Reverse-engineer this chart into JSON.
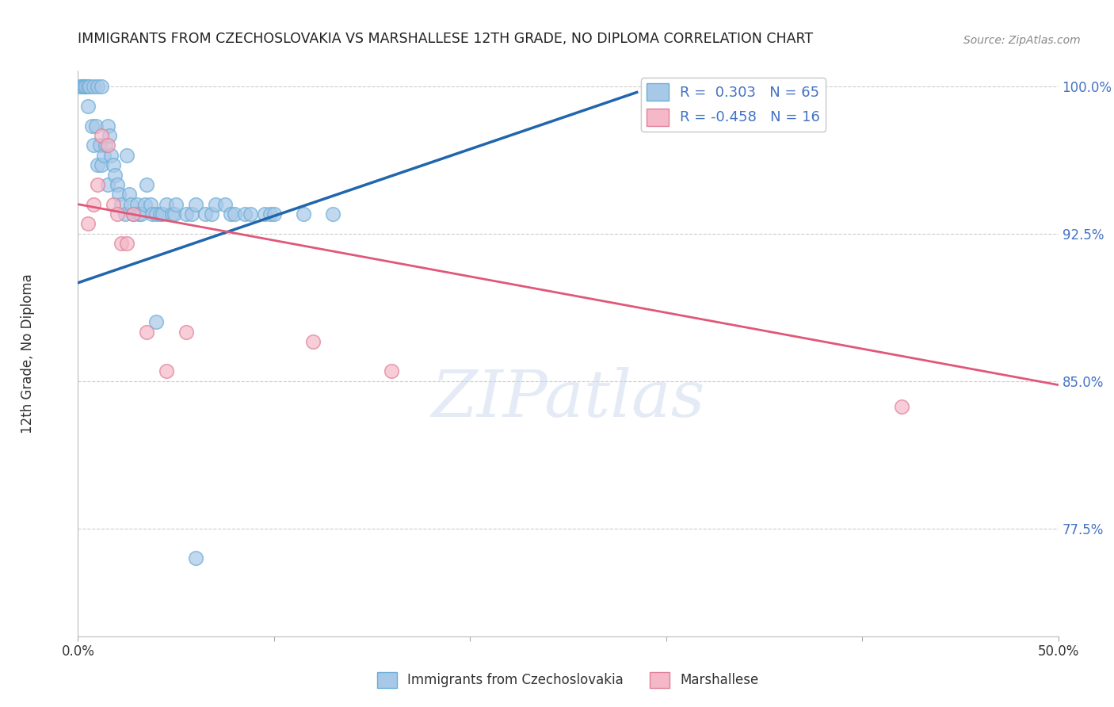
{
  "title": "IMMIGRANTS FROM CZECHOSLOVAKIA VS MARSHALLESE 12TH GRADE, NO DIPLOMA CORRELATION CHART",
  "source": "Source: ZipAtlas.com",
  "ylabel": "12th Grade, No Diploma",
  "xlim": [
    0.0,
    0.5
  ],
  "ylim": [
    0.72,
    1.008
  ],
  "xticks": [
    0.0,
    0.1,
    0.2,
    0.3,
    0.4,
    0.5
  ],
  "xticklabels": [
    "0.0%",
    "",
    "",
    "",
    "",
    "50.0%"
  ],
  "yticks": [
    0.775,
    0.85,
    0.925,
    1.0
  ],
  "yticklabels": [
    "77.5%",
    "85.0%",
    "92.5%",
    "100.0%"
  ],
  "legend1_label": "Immigrants from Czechoslovakia",
  "legend2_label": "Marshallese",
  "r1": 0.303,
  "n1": 65,
  "r2": -0.458,
  "n2": 16,
  "blue_color": "#a8c8e8",
  "blue_edge_color": "#6baed6",
  "pink_color": "#f4b8c8",
  "pink_edge_color": "#e08098",
  "blue_line_color": "#2166ac",
  "pink_line_color": "#e05878",
  "blue_scatter_x": [
    0.001,
    0.002,
    0.003,
    0.003,
    0.004,
    0.005,
    0.005,
    0.006,
    0.007,
    0.008,
    0.008,
    0.009,
    0.01,
    0.01,
    0.011,
    0.012,
    0.012,
    0.013,
    0.014,
    0.015,
    0.015,
    0.016,
    0.017,
    0.018,
    0.019,
    0.02,
    0.021,
    0.022,
    0.024,
    0.025,
    0.026,
    0.027,
    0.028,
    0.03,
    0.031,
    0.032,
    0.034,
    0.035,
    0.037,
    0.038,
    0.04,
    0.042,
    0.043,
    0.045,
    0.048,
    0.049,
    0.05,
    0.055,
    0.058,
    0.06,
    0.065,
    0.068,
    0.07,
    0.075,
    0.078,
    0.08,
    0.085,
    0.088,
    0.095,
    0.098,
    0.1,
    0.115,
    0.13,
    0.04,
    0.06
  ],
  "blue_scatter_y": [
    1.0,
    1.0,
    1.0,
    1.0,
    1.0,
    1.0,
    0.99,
    1.0,
    0.98,
    1.0,
    0.97,
    0.98,
    1.0,
    0.96,
    0.97,
    1.0,
    0.96,
    0.965,
    0.97,
    0.98,
    0.95,
    0.975,
    0.965,
    0.96,
    0.955,
    0.95,
    0.945,
    0.94,
    0.935,
    0.965,
    0.945,
    0.94,
    0.935,
    0.94,
    0.935,
    0.935,
    0.94,
    0.95,
    0.94,
    0.935,
    0.935,
    0.935,
    0.935,
    0.94,
    0.935,
    0.935,
    0.94,
    0.935,
    0.935,
    0.94,
    0.935,
    0.935,
    0.94,
    0.94,
    0.935,
    0.935,
    0.935,
    0.935,
    0.935,
    0.935,
    0.935,
    0.935,
    0.935,
    0.88,
    0.76
  ],
  "pink_scatter_x": [
    0.005,
    0.008,
    0.01,
    0.012,
    0.015,
    0.018,
    0.02,
    0.022,
    0.025,
    0.028,
    0.035,
    0.045,
    0.055,
    0.12,
    0.16,
    0.42
  ],
  "pink_scatter_y": [
    0.93,
    0.94,
    0.95,
    0.975,
    0.97,
    0.94,
    0.935,
    0.92,
    0.92,
    0.935,
    0.875,
    0.855,
    0.875,
    0.87,
    0.855,
    0.837
  ],
  "blue_line_x0": 0.0,
  "blue_line_x1": 0.285,
  "blue_line_y0": 0.9,
  "blue_line_y1": 0.997,
  "pink_line_x0": 0.0,
  "pink_line_x1": 0.5,
  "pink_line_y0": 0.94,
  "pink_line_y1": 0.848,
  "watermark_text": "ZIPatlas",
  "title_color": "#222222",
  "ytick_color": "#4472c4",
  "xtick_color": "#333333",
  "grid_color": "#cccccc",
  "legend_text_color": "#4472c4"
}
